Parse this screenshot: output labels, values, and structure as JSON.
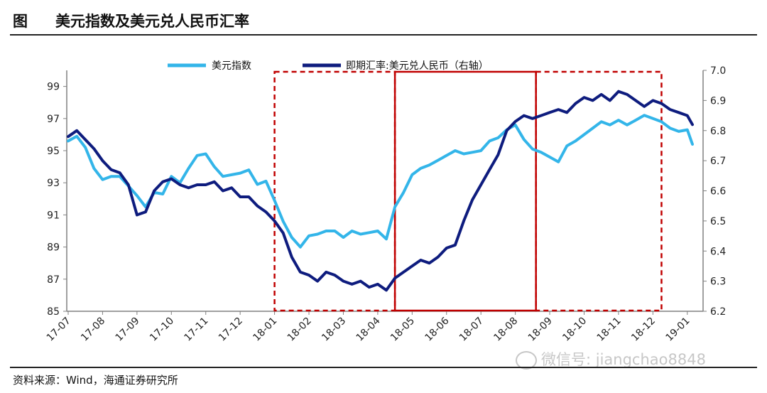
{
  "header": {
    "fig_label": "图",
    "title": "美元指数及美元兑人民币汇率"
  },
  "source": "资料来源：Wind，海通证券研究所",
  "watermark": "微信号: jiangchao8848",
  "colors": {
    "dxy": "#33b5e9",
    "cny": "#0e1c7e",
    "box": "#c00000",
    "axis": "#808080"
  },
  "chart_data": {
    "type": "line",
    "title": "美元指数及美元兑人民币汇率",
    "legend_position": "top",
    "grid": false,
    "x": {
      "ticks": [
        "17-07",
        "17-08",
        "17-09",
        "17-10",
        "17-11",
        "17-12",
        "18-01",
        "18-02",
        "18-03",
        "18-04",
        "18-05",
        "18-06",
        "18-07",
        "18-08",
        "18-09",
        "18-10",
        "18-11",
        "18-12",
        "19-01"
      ]
    },
    "y_left": {
      "lim": [
        85,
        100
      ],
      "ticks": [
        "85",
        "87",
        "89",
        "91",
        "93",
        "95",
        "97",
        "99"
      ]
    },
    "y_right": {
      "lim": [
        6.2,
        7.0
      ],
      "ticks": [
        "6.2",
        "6.3",
        "6.4",
        "6.5",
        "6.6",
        "6.7",
        "6.8",
        "6.9",
        "7.0"
      ]
    },
    "series": [
      {
        "name": "美元指数",
        "axis": "left",
        "x": [
          0,
          0.25,
          0.5,
          0.75,
          1,
          1.25,
          1.5,
          1.75,
          2,
          2.25,
          2.5,
          2.75,
          3,
          3.25,
          3.5,
          3.75,
          4,
          4.25,
          4.5,
          4.75,
          5,
          5.25,
          5.5,
          5.75,
          6,
          6.25,
          6.5,
          6.75,
          7,
          7.25,
          7.5,
          7.75,
          8,
          8.25,
          8.5,
          8.75,
          9,
          9.25,
          9.5,
          9.75,
          10,
          10.25,
          10.5,
          10.75,
          11,
          11.25,
          11.5,
          11.75,
          12,
          12.25,
          12.5,
          12.75,
          13,
          13.25,
          13.5,
          13.75,
          14,
          14.25,
          14.5,
          14.75,
          15,
          15.25,
          15.5,
          15.75,
          16,
          16.25,
          16.5,
          16.75,
          17,
          17.25,
          17.5,
          17.75,
          18,
          18.15
        ],
        "values": [
          95.6,
          95.9,
          95.2,
          93.9,
          93.2,
          93.4,
          93.4,
          92.8,
          92.2,
          91.5,
          92.4,
          92.3,
          93.4,
          93.0,
          93.9,
          94.7,
          94.8,
          94.0,
          93.4,
          93.5,
          93.6,
          93.8,
          92.9,
          93.1,
          91.9,
          90.6,
          89.6,
          89.0,
          89.7,
          89.8,
          90.0,
          90.0,
          89.6,
          90.0,
          89.8,
          89.9,
          90.0,
          89.5,
          91.5,
          92.4,
          93.5,
          93.9,
          94.1,
          94.4,
          94.7,
          95.0,
          94.8,
          94.9,
          95.0,
          95.6,
          95.8,
          96.3,
          96.6,
          95.7,
          95.1,
          94.9,
          94.6,
          94.3,
          95.3,
          95.6,
          96.0,
          96.4,
          96.8,
          96.6,
          96.9,
          96.6,
          96.9,
          97.2,
          97.0,
          96.8,
          96.4,
          96.2,
          96.3,
          95.4
        ]
      },
      {
        "name": "即期汇率:美元兑人民币（右轴）",
        "axis": "right",
        "x": [
          0,
          0.25,
          0.5,
          0.75,
          1,
          1.25,
          1.5,
          1.75,
          2,
          2.25,
          2.5,
          2.75,
          3,
          3.25,
          3.5,
          3.75,
          4,
          4.25,
          4.5,
          4.75,
          5,
          5.25,
          5.5,
          5.75,
          6,
          6.25,
          6.5,
          6.75,
          7,
          7.25,
          7.5,
          7.75,
          8,
          8.25,
          8.5,
          8.75,
          9,
          9.25,
          9.5,
          9.75,
          10,
          10.25,
          10.5,
          10.75,
          11,
          11.25,
          11.5,
          11.75,
          12,
          12.25,
          12.5,
          12.75,
          13,
          13.25,
          13.5,
          13.75,
          14,
          14.25,
          14.5,
          14.75,
          15,
          15.25,
          15.5,
          15.75,
          16,
          16.25,
          16.5,
          16.75,
          17,
          17.25,
          17.5,
          17.75,
          18,
          18.15
        ],
        "values": [
          6.78,
          6.8,
          6.77,
          6.74,
          6.7,
          6.67,
          6.66,
          6.62,
          6.52,
          6.53,
          6.6,
          6.63,
          6.64,
          6.62,
          6.61,
          6.62,
          6.62,
          6.63,
          6.6,
          6.61,
          6.58,
          6.58,
          6.55,
          6.53,
          6.5,
          6.46,
          6.38,
          6.33,
          6.32,
          6.3,
          6.33,
          6.32,
          6.3,
          6.29,
          6.3,
          6.28,
          6.29,
          6.27,
          6.31,
          6.33,
          6.35,
          6.37,
          6.36,
          6.38,
          6.41,
          6.42,
          6.5,
          6.57,
          6.62,
          6.67,
          6.72,
          6.8,
          6.83,
          6.85,
          6.84,
          6.85,
          6.86,
          6.87,
          6.86,
          6.89,
          6.91,
          6.9,
          6.92,
          6.9,
          6.93,
          6.92,
          6.9,
          6.88,
          6.9,
          6.89,
          6.87,
          6.86,
          6.85,
          6.82
        ]
      }
    ],
    "annotations": [
      {
        "type": "dashed-box",
        "x_range": [
          6.0,
          9.5
        ],
        "color": "#c00000"
      },
      {
        "type": "solid-box",
        "x_range": [
          9.5,
          13.6
        ],
        "color": "#c00000"
      },
      {
        "type": "dashed-box",
        "x_range": [
          13.6,
          17.25
        ],
        "color": "#c00000"
      }
    ]
  }
}
